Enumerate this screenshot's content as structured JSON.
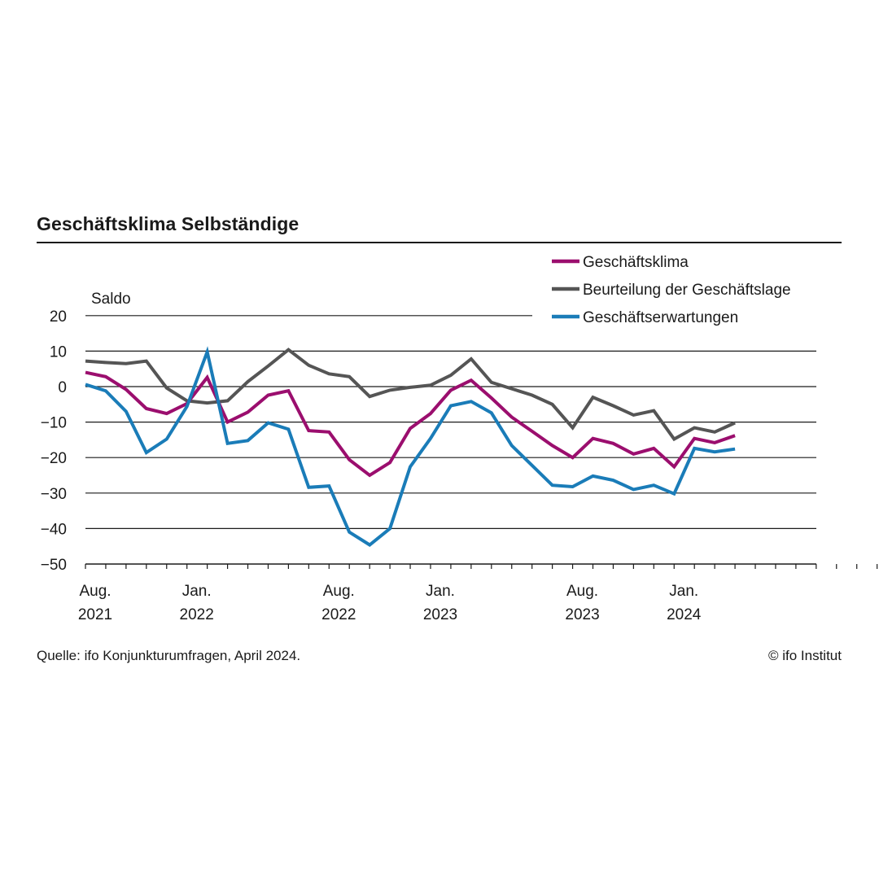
{
  "chart_data": {
    "type": "line",
    "title": "Geschäftsklima Selbständige",
    "ylabel": "Saldo",
    "ylim": [
      -50,
      20
    ],
    "yticks": [
      20,
      10,
      0,
      -10,
      -20,
      -30,
      -40,
      -50
    ],
    "ytick_labels": [
      "20",
      "10",
      "0",
      "−10",
      "−20",
      "−30",
      "−40",
      "−50"
    ],
    "grid": true,
    "legend_position": "top-right",
    "x_start": "2021-08",
    "x_end": "2024-12",
    "x_tick_labels": [
      {
        "month": "Aug.",
        "year": "2021",
        "date": "2021-08"
      },
      {
        "month": "Jan.",
        "year": "2022",
        "date": "2022-01"
      },
      {
        "month": "Aug.",
        "year": "2022",
        "date": "2022-08"
      },
      {
        "month": "Jan.",
        "year": "2023",
        "date": "2023-01"
      },
      {
        "month": "Aug.",
        "year": "2023",
        "date": "2023-08"
      },
      {
        "month": "Jan.",
        "year": "2024",
        "date": "2024-01"
      }
    ],
    "x": [
      "2021-08",
      "2021-09",
      "2021-10",
      "2021-11",
      "2021-12",
      "2022-01",
      "2022-02",
      "2022-03",
      "2022-04",
      "2022-05",
      "2022-06",
      "2022-07",
      "2022-08",
      "2022-09",
      "2022-10",
      "2022-11",
      "2022-12",
      "2023-01",
      "2023-02",
      "2023-03",
      "2023-04",
      "2023-05",
      "2023-06",
      "2023-07",
      "2023-08",
      "2023-09",
      "2023-10",
      "2023-11",
      "2023-12",
      "2024-01",
      "2024-02",
      "2024-03",
      "2024-04"
    ],
    "series": [
      {
        "name": "Geschäftsklima",
        "color": "#9b0e6e",
        "values": [
          4.0,
          2.8,
          -0.8,
          -6.2,
          -7.6,
          -4.8,
          2.6,
          -10.0,
          -7.2,
          -2.4,
          -1.2,
          -12.4,
          -12.8,
          -20.6,
          -25.0,
          -21.4,
          -11.8,
          -7.6,
          -1.0,
          1.8,
          -3.2,
          -8.6,
          -12.6,
          -16.6,
          -20.0,
          -14.6,
          -16.0,
          -19.0,
          -17.4,
          -22.6,
          -14.6,
          -15.8,
          -13.8
        ]
      },
      {
        "name": "Beurteilung der Geschäftslage",
        "color": "#555555",
        "values": [
          7.2,
          6.8,
          6.5,
          7.2,
          -0.4,
          -4.0,
          -4.6,
          -4.0,
          1.4,
          5.8,
          10.4,
          6.0,
          3.6,
          2.8,
          -2.8,
          -1.0,
          -0.2,
          0.4,
          3.2,
          7.8,
          1.2,
          -0.6,
          -2.4,
          -5.0,
          -11.6,
          -3.0,
          -5.4,
          -8.0,
          -6.8,
          -14.8,
          -11.6,
          -12.8,
          -10.2
        ]
      },
      {
        "name": "Geschäftserwartungen",
        "color": "#1a7cb8",
        "values": [
          0.6,
          -1.2,
          -7.0,
          -18.6,
          -14.8,
          -5.6,
          9.8,
          -16.0,
          -15.2,
          -10.2,
          -12.0,
          -28.4,
          -28.0,
          -41.0,
          -44.6,
          -40.0,
          -22.6,
          -14.6,
          -5.4,
          -4.2,
          -7.4,
          -16.6,
          -22.2,
          -27.8,
          -28.2,
          -25.2,
          -26.4,
          -29.0,
          -27.8,
          -30.2,
          -17.4,
          -18.4,
          -17.6
        ]
      }
    ],
    "source": "Quelle: ifo Konjunkturumfragen, April 2024.",
    "copyright": "© ifo Institut"
  }
}
